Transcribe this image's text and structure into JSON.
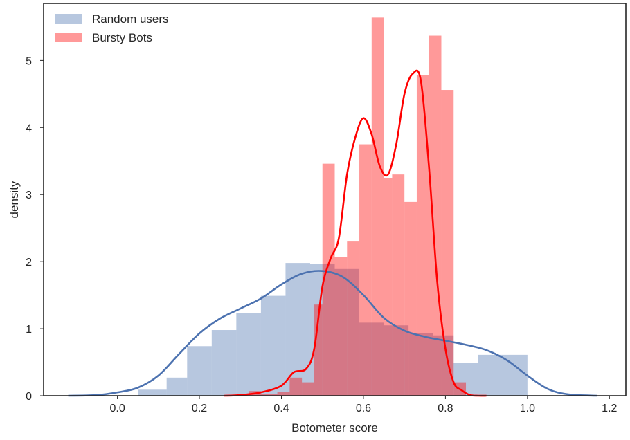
{
  "chart_data": {
    "type": "histogram",
    "xlabel": "Botometer score",
    "ylabel": "density",
    "xlim": [
      -0.18,
      1.24
    ],
    "ylim": [
      0,
      5.85
    ],
    "xticks": [
      0.0,
      0.2,
      0.4,
      0.6,
      0.8,
      1.0,
      1.2
    ],
    "xtick_labels": [
      "0.0",
      "0.2",
      "0.4",
      "0.6",
      "0.8",
      "1.0",
      "1.2"
    ],
    "yticks": [
      0,
      1,
      2,
      3,
      4,
      5
    ],
    "ytick_labels": [
      "0",
      "1",
      "2",
      "3",
      "4",
      "5"
    ],
    "grid": false,
    "legend_position": "upper-left",
    "series": [
      {
        "name": "Random users",
        "color": "#4c72b0",
        "bar_opacity": 0.4,
        "bins": [
          {
            "x0": 0.05,
            "x1": 0.12,
            "y": 0.09
          },
          {
            "x0": 0.12,
            "x1": 0.17,
            "y": 0.27
          },
          {
            "x0": 0.17,
            "x1": 0.23,
            "y": 0.74
          },
          {
            "x0": 0.23,
            "x1": 0.29,
            "y": 0.98
          },
          {
            "x0": 0.29,
            "x1": 0.35,
            "y": 1.23
          },
          {
            "x0": 0.35,
            "x1": 0.41,
            "y": 1.49
          },
          {
            "x0": 0.41,
            "x1": 0.47,
            "y": 1.98
          },
          {
            "x0": 0.47,
            "x1": 0.53,
            "y": 1.97
          },
          {
            "x0": 0.53,
            "x1": 0.59,
            "y": 1.89
          },
          {
            "x0": 0.59,
            "x1": 0.65,
            "y": 1.09
          },
          {
            "x0": 0.65,
            "x1": 0.71,
            "y": 1.05
          },
          {
            "x0": 0.71,
            "x1": 0.77,
            "y": 0.93
          },
          {
            "x0": 0.77,
            "x1": 0.82,
            "y": 0.9
          },
          {
            "x0": 0.82,
            "x1": 0.88,
            "y": 0.49
          },
          {
            "x0": 0.88,
            "x1": 0.94,
            "y": 0.61
          },
          {
            "x0": 0.94,
            "x1": 1.0,
            "y": 0.61
          }
        ],
        "kde": {
          "x": [
            -0.12,
            -0.05,
            0.0,
            0.05,
            0.1,
            0.15,
            0.2,
            0.25,
            0.3,
            0.35,
            0.4,
            0.45,
            0.5,
            0.55,
            0.6,
            0.65,
            0.7,
            0.75,
            0.8,
            0.85,
            0.9,
            0.95,
            1.0,
            1.05,
            1.1,
            1.17
          ],
          "y": [
            0.0,
            0.01,
            0.05,
            0.12,
            0.3,
            0.62,
            0.93,
            1.15,
            1.3,
            1.45,
            1.66,
            1.82,
            1.86,
            1.77,
            1.5,
            1.16,
            0.97,
            0.88,
            0.82,
            0.76,
            0.68,
            0.53,
            0.3,
            0.1,
            0.02,
            0.0
          ]
        }
      },
      {
        "name": "Bursty Bots",
        "color": "#ff0000",
        "bar_opacity": 0.4,
        "bins": [
          {
            "x0": 0.32,
            "x1": 0.35,
            "y": 0.07
          },
          {
            "x0": 0.35,
            "x1": 0.39,
            "y": 0.03
          },
          {
            "x0": 0.39,
            "x1": 0.42,
            "y": 0.06
          },
          {
            "x0": 0.42,
            "x1": 0.45,
            "y": 0.27
          },
          {
            "x0": 0.45,
            "x1": 0.48,
            "y": 0.2
          },
          {
            "x0": 0.48,
            "x1": 0.5,
            "y": 1.36
          },
          {
            "x0": 0.5,
            "x1": 0.53,
            "y": 3.46
          },
          {
            "x0": 0.53,
            "x1": 0.56,
            "y": 2.07
          },
          {
            "x0": 0.56,
            "x1": 0.59,
            "y": 2.3
          },
          {
            "x0": 0.59,
            "x1": 0.62,
            "y": 3.75
          },
          {
            "x0": 0.62,
            "x1": 0.65,
            "y": 5.64
          },
          {
            "x0": 0.65,
            "x1": 0.67,
            "y": 3.24
          },
          {
            "x0": 0.67,
            "x1": 0.7,
            "y": 3.3
          },
          {
            "x0": 0.7,
            "x1": 0.73,
            "y": 2.89
          },
          {
            "x0": 0.73,
            "x1": 0.76,
            "y": 4.78
          },
          {
            "x0": 0.76,
            "x1": 0.79,
            "y": 5.37
          },
          {
            "x0": 0.79,
            "x1": 0.82,
            "y": 4.56
          },
          {
            "x0": 0.82,
            "x1": 0.85,
            "y": 0.2
          },
          {
            "x0": 0.85,
            "x1": 0.85,
            "y": 0.1
          }
        ],
        "kde": {
          "x": [
            0.26,
            0.3,
            0.35,
            0.4,
            0.43,
            0.46,
            0.48,
            0.5,
            0.52,
            0.54,
            0.56,
            0.58,
            0.6,
            0.62,
            0.64,
            0.66,
            0.68,
            0.7,
            0.72,
            0.74,
            0.76,
            0.78,
            0.8,
            0.82,
            0.84,
            0.86,
            0.88,
            0.9
          ],
          "y": [
            0.0,
            0.01,
            0.05,
            0.15,
            0.35,
            0.4,
            0.7,
            1.63,
            2.05,
            2.35,
            3.3,
            3.85,
            4.14,
            3.9,
            3.42,
            3.3,
            3.75,
            4.5,
            4.8,
            4.7,
            3.4,
            1.7,
            0.7,
            0.2,
            0.08,
            0.01,
            0.0,
            0.0
          ]
        }
      }
    ]
  }
}
